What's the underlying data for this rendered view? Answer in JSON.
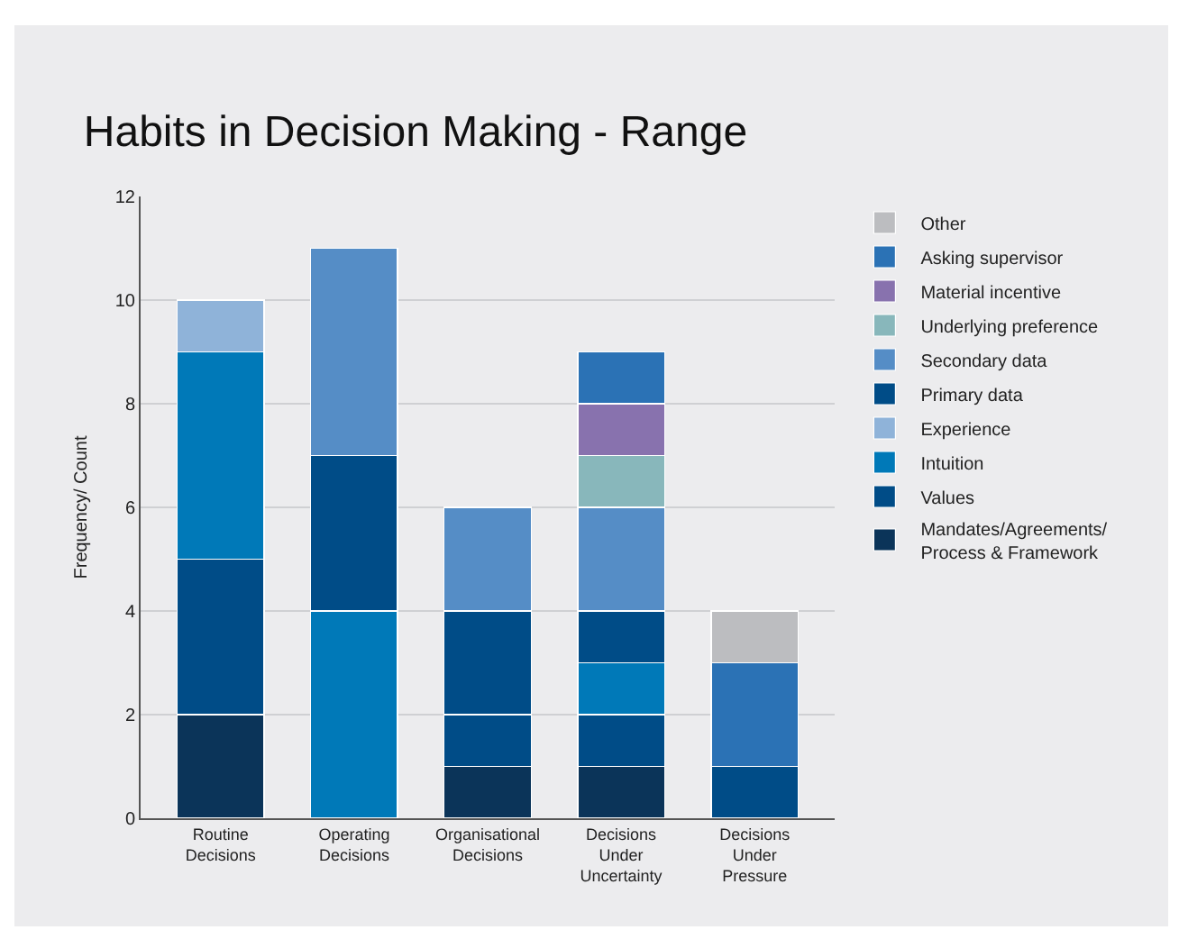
{
  "chart_data": {
    "type": "bar",
    "stacked": true,
    "title": "Habits in Decision Making - Range",
    "ylabel": "Frequency/ Count",
    "categories": [
      "Routine Decisions",
      "Operating Decisions",
      "Organisational Decisions",
      "Decisions Under Uncertainty",
      "Decisions Under Pressure"
    ],
    "ylim": [
      0,
      12
    ],
    "yticks": [
      0,
      2,
      4,
      6,
      8,
      10,
      12
    ],
    "grid": "y",
    "legend": "right",
    "series": [
      {
        "name": "Mandates/Agreements/ Process & Framework",
        "color": "#0b3459",
        "values": [
          2,
          null,
          1,
          1,
          null
        ]
      },
      {
        "name": "Values",
        "color": "#004c87",
        "values": [
          3,
          null,
          1,
          1,
          1
        ]
      },
      {
        "name": "Intuition",
        "color": "#0079b8",
        "values": [
          4,
          4,
          null,
          1,
          null
        ]
      },
      {
        "name": "Experience",
        "color": "#8fb3d9",
        "values": [
          1,
          null,
          null,
          null,
          null
        ]
      },
      {
        "name": "Primary data",
        "color": "#004c87",
        "values": [
          null,
          3,
          2,
          1,
          null
        ]
      },
      {
        "name": "Secondary data",
        "color": "#558dc6",
        "values": [
          null,
          4,
          2,
          2,
          null
        ]
      },
      {
        "name": "Underlying preference",
        "color": "#88b7bb",
        "values": [
          null,
          null,
          null,
          1,
          null
        ]
      },
      {
        "name": "Material incentive",
        "color": "#8872ae",
        "values": [
          null,
          null,
          null,
          1,
          null
        ]
      },
      {
        "name": "Asking supervisor",
        "color": "#2b72b5",
        "values": [
          null,
          null,
          null,
          1,
          2
        ]
      },
      {
        "name": "Other",
        "color": "#bcbdc0",
        "values": [
          null,
          null,
          null,
          null,
          1
        ]
      }
    ]
  }
}
